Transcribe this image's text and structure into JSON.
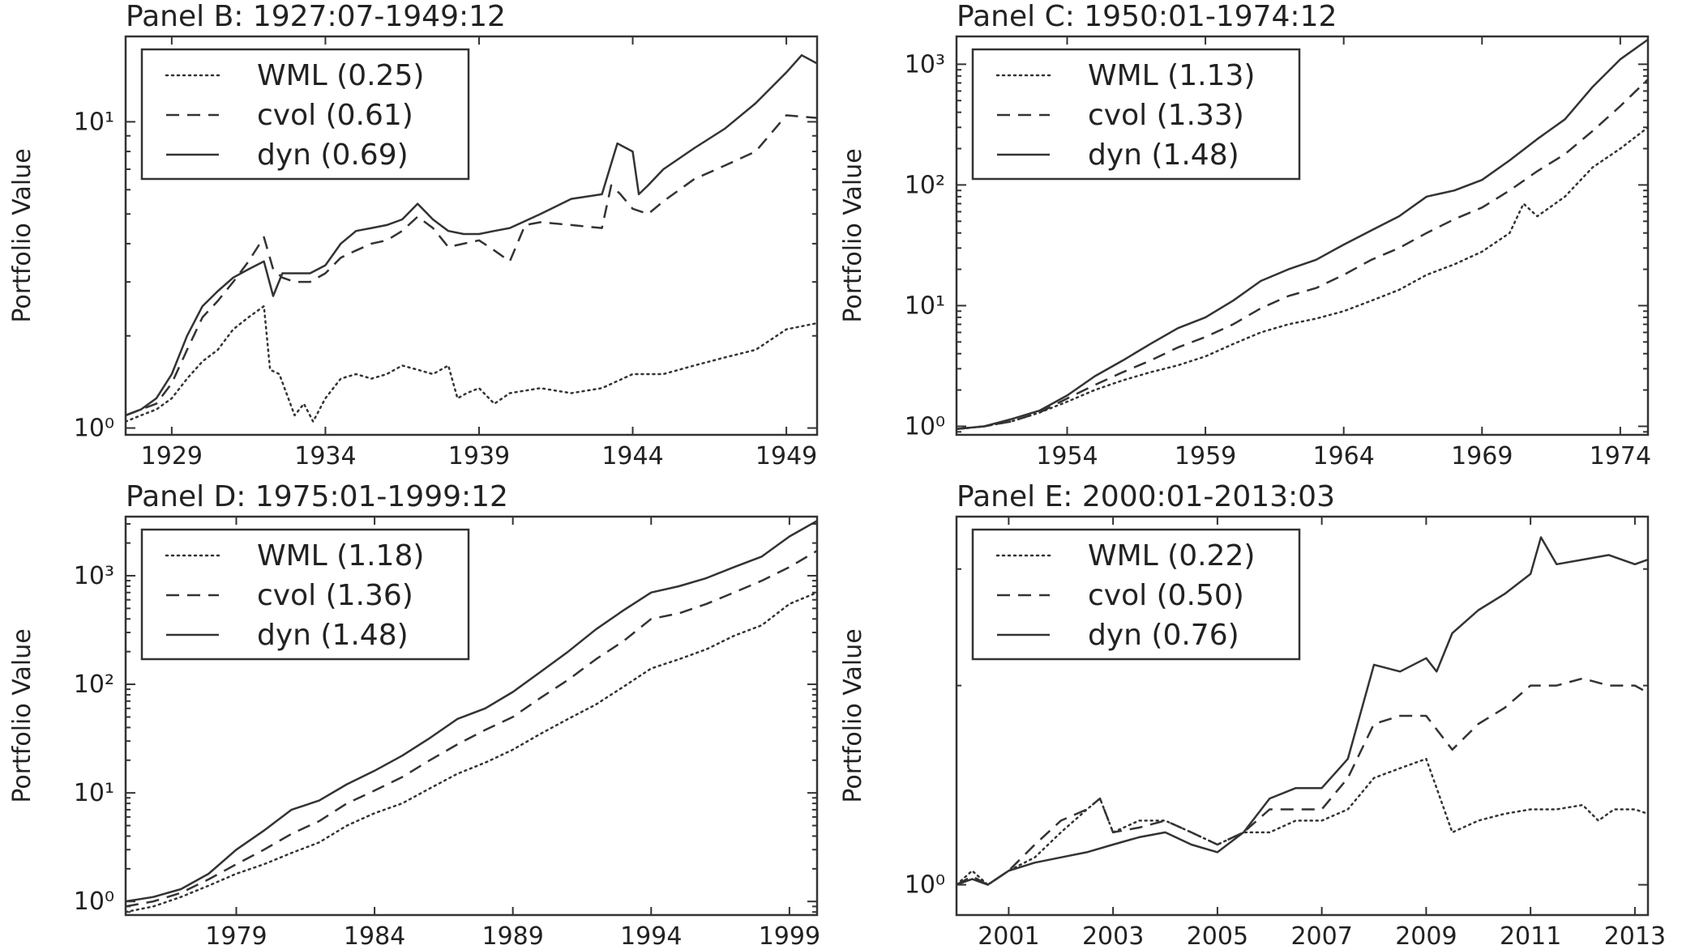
{
  "chart_data": [
    {
      "type": "line",
      "title": "Panel B: 1927:07-1949:12",
      "ylabel": "Portfolio Value",
      "yscale": "log",
      "xlim": [
        1927.5,
        1950.0
      ],
      "ylim": [
        0.95,
        19
      ],
      "xticks": [
        1929,
        1934,
        1939,
        1944,
        1949
      ],
      "yticks": [
        {
          "value": 1,
          "label": "10⁰"
        },
        {
          "value": 10,
          "label": "10¹"
        }
      ],
      "legend_position": "top-left",
      "series": [
        {
          "name": "WML (0.25)",
          "style": "dotted",
          "x": [
            1927.5,
            1928.0,
            1928.5,
            1929.0,
            1929.5,
            1930.0,
            1930.5,
            1931.0,
            1931.5,
            1932.0,
            1932.2,
            1932.5,
            1933.0,
            1933.3,
            1933.6,
            1934.0,
            1934.5,
            1935.0,
            1935.5,
            1936.0,
            1936.5,
            1937.0,
            1937.5,
            1938.0,
            1938.3,
            1938.6,
            1939.0,
            1939.5,
            1940.0,
            1941.0,
            1942.0,
            1943.0,
            1944.0,
            1945.0,
            1946.0,
            1947.0,
            1948.0,
            1949.0,
            1950.0
          ],
          "y": [
            1.05,
            1.1,
            1.15,
            1.25,
            1.45,
            1.65,
            1.8,
            2.1,
            2.3,
            2.5,
            1.55,
            1.5,
            1.1,
            1.2,
            1.05,
            1.25,
            1.45,
            1.5,
            1.45,
            1.5,
            1.6,
            1.55,
            1.5,
            1.6,
            1.25,
            1.3,
            1.35,
            1.2,
            1.3,
            1.35,
            1.3,
            1.35,
            1.5,
            1.5,
            1.6,
            1.7,
            1.8,
            2.1,
            2.2
          ]
        },
        {
          "name": "cvol (0.61)",
          "style": "dashed",
          "x": [
            1927.5,
            1928.0,
            1928.5,
            1929.0,
            1929.5,
            1930.0,
            1930.5,
            1931.0,
            1931.5,
            1932.0,
            1932.3,
            1932.6,
            1933.0,
            1933.5,
            1934.0,
            1934.5,
            1935.0,
            1935.5,
            1936.0,
            1936.5,
            1937.0,
            1937.5,
            1938.0,
            1938.5,
            1939.0,
            1939.5,
            1940.0,
            1940.5,
            1941.0,
            1942.0,
            1943.0,
            1943.3,
            1943.6,
            1944.0,
            1944.5,
            1945.0,
            1946.0,
            1947.0,
            1948.0,
            1949.0,
            1950.0
          ],
          "y": [
            1.1,
            1.15,
            1.2,
            1.4,
            1.8,
            2.3,
            2.6,
            3.0,
            3.5,
            4.2,
            3.3,
            3.1,
            3.0,
            3.0,
            3.2,
            3.6,
            3.8,
            4.0,
            4.1,
            4.4,
            4.9,
            4.5,
            3.9,
            4.0,
            4.1,
            3.8,
            3.5,
            4.6,
            4.7,
            4.6,
            4.5,
            6.2,
            5.8,
            5.2,
            5.0,
            5.5,
            6.5,
            7.2,
            8.0,
            10.5,
            10.3
          ]
        },
        {
          "name": "dyn (0.69)",
          "style": "solid",
          "x": [
            1927.5,
            1928.0,
            1928.5,
            1929.0,
            1929.5,
            1930.0,
            1930.5,
            1931.0,
            1931.5,
            1932.0,
            1932.3,
            1932.6,
            1933.0,
            1933.5,
            1934.0,
            1934.5,
            1935.0,
            1935.5,
            1936.0,
            1936.5,
            1937.0,
            1937.5,
            1938.0,
            1938.5,
            1939.0,
            1939.5,
            1940.0,
            1941.0,
            1942.0,
            1943.0,
            1943.5,
            1944.0,
            1944.2,
            1944.5,
            1945.0,
            1946.0,
            1947.0,
            1948.0,
            1949.0,
            1949.5,
            1950.0
          ],
          "y": [
            1.1,
            1.15,
            1.25,
            1.5,
            2.0,
            2.5,
            2.8,
            3.1,
            3.3,
            3.5,
            2.7,
            3.2,
            3.2,
            3.2,
            3.4,
            4.0,
            4.4,
            4.5,
            4.6,
            4.8,
            5.4,
            4.8,
            4.4,
            4.3,
            4.3,
            4.4,
            4.5,
            5.0,
            5.6,
            5.8,
            8.5,
            8.0,
            5.8,
            6.2,
            7.0,
            8.2,
            9.5,
            11.5,
            14.5,
            16.5,
            15.5
          ]
        }
      ]
    },
    {
      "type": "line",
      "title": "Panel C: 1950:01-1974:12",
      "ylabel": "Portfolio Value",
      "yscale": "log",
      "xlim": [
        1950.0,
        1975.0
      ],
      "ylim": [
        0.85,
        1700
      ],
      "xticks": [
        1954,
        1959,
        1964,
        1969,
        1974
      ],
      "yticks": [
        {
          "value": 1,
          "label": "10⁰"
        },
        {
          "value": 10,
          "label": "10¹"
        },
        {
          "value": 100,
          "label": "10²"
        },
        {
          "value": 1000,
          "label": "10³"
        }
      ],
      "legend_position": "top-left",
      "series": [
        {
          "name": "WML (1.13)",
          "style": "dotted",
          "x": [
            1950,
            1951,
            1952,
            1953,
            1954,
            1955,
            1956,
            1957,
            1958,
            1959,
            1960,
            1961,
            1962,
            1963,
            1964,
            1965,
            1966,
            1967,
            1968,
            1969,
            1970,
            1970.5,
            1971,
            1972,
            1973,
            1974,
            1975
          ],
          "y": [
            0.95,
            1.0,
            1.1,
            1.3,
            1.6,
            2.0,
            2.4,
            2.8,
            3.2,
            3.8,
            4.8,
            6.0,
            7.0,
            7.8,
            9.0,
            11.0,
            13.5,
            18.0,
            22.0,
            28.0,
            40.0,
            70.0,
            55.0,
            80.0,
            140.0,
            200.0,
            300.0
          ]
        },
        {
          "name": "cvol (1.33)",
          "style": "dashed",
          "x": [
            1950,
            1951,
            1952,
            1953,
            1954,
            1955,
            1956,
            1957,
            1958,
            1959,
            1960,
            1961,
            1962,
            1963,
            1964,
            1965,
            1966,
            1967,
            1968,
            1969,
            1970,
            1971,
            1972,
            1973,
            1974,
            1975
          ],
          "y": [
            0.95,
            1.0,
            1.1,
            1.3,
            1.7,
            2.2,
            2.8,
            3.5,
            4.5,
            5.5,
            7.0,
            9.5,
            12.0,
            14.0,
            18.0,
            24.0,
            30.0,
            40.0,
            52.0,
            65.0,
            90.0,
            130.0,
            180.0,
            280.0,
            450.0,
            750.0
          ]
        },
        {
          "name": "dyn (1.48)",
          "style": "solid",
          "x": [
            1950,
            1951,
            1952,
            1953,
            1954,
            1955,
            1956,
            1957,
            1958,
            1959,
            1960,
            1961,
            1962,
            1963,
            1964,
            1965,
            1966,
            1967,
            1968,
            1969,
            1970,
            1971,
            1972,
            1973,
            1974,
            1975
          ],
          "y": [
            0.95,
            1.0,
            1.15,
            1.35,
            1.8,
            2.6,
            3.5,
            4.8,
            6.5,
            8.0,
            11.0,
            16.0,
            20.0,
            24.0,
            32.0,
            42.0,
            55.0,
            80.0,
            90.0,
            110.0,
            160.0,
            240.0,
            350.0,
            650.0,
            1100.0,
            1600.0
          ]
        }
      ]
    },
    {
      "type": "line",
      "title": "Panel D: 1975:01-1999:12",
      "ylabel": "Portfolio Value",
      "yscale": "log",
      "xlim": [
        1975.0,
        2000.0
      ],
      "ylim": [
        0.75,
        3500
      ],
      "xticks": [
        1979,
        1984,
        1989,
        1994,
        1999
      ],
      "yticks": [
        {
          "value": 1,
          "label": "10⁰"
        },
        {
          "value": 10,
          "label": "10¹"
        },
        {
          "value": 100,
          "label": "10²"
        },
        {
          "value": 1000,
          "label": "10³"
        }
      ],
      "legend_position": "top-left",
      "series": [
        {
          "name": "WML (1.18)",
          "style": "dotted",
          "x": [
            1975,
            1976,
            1977,
            1978,
            1979,
            1980,
            1981,
            1982,
            1983,
            1984,
            1985,
            1986,
            1987,
            1988,
            1989,
            1990,
            1991,
            1992,
            1993,
            1994,
            1995,
            1996,
            1997,
            1998,
            1999,
            2000
          ],
          "y": [
            0.8,
            0.9,
            1.1,
            1.4,
            1.8,
            2.2,
            2.8,
            3.5,
            5.0,
            6.5,
            8.0,
            11.0,
            15.0,
            19.0,
            25.0,
            35.0,
            48.0,
            65.0,
            95.0,
            140.0,
            170.0,
            210.0,
            280.0,
            350.0,
            550.0,
            700.0
          ]
        },
        {
          "name": "cvol (1.36)",
          "style": "dashed",
          "x": [
            1975,
            1976,
            1977,
            1978,
            1979,
            1980,
            1981,
            1982,
            1983,
            1984,
            1985,
            1986,
            1987,
            1988,
            1989,
            1990,
            1991,
            1992,
            1993,
            1994,
            1995,
            1996,
            1997,
            1998,
            1999,
            2000
          ],
          "y": [
            0.9,
            1.0,
            1.2,
            1.6,
            2.2,
            3.0,
            4.2,
            5.5,
            8.0,
            10.5,
            14.0,
            20.0,
            28.0,
            38.0,
            50.0,
            75.0,
            110.0,
            170.0,
            250.0,
            400.0,
            450.0,
            550.0,
            700.0,
            900.0,
            1200.0,
            1700.0
          ]
        },
        {
          "name": "dyn (1.48)",
          "style": "solid",
          "x": [
            1975,
            1976,
            1977,
            1978,
            1979,
            1980,
            1981,
            1982,
            1983,
            1984,
            1985,
            1986,
            1987,
            1988,
            1989,
            1990,
            1991,
            1992,
            1993,
            1994,
            1995,
            1996,
            1997,
            1998,
            1999,
            2000
          ],
          "y": [
            1.0,
            1.1,
            1.3,
            1.8,
            3.0,
            4.5,
            7.0,
            8.5,
            12.0,
            16.0,
            22.0,
            32.0,
            48.0,
            60.0,
            85.0,
            130.0,
            200.0,
            320.0,
            480.0,
            700.0,
            800.0,
            950.0,
            1200.0,
            1500.0,
            2300.0,
            3200.0
          ]
        }
      ]
    },
    {
      "type": "line",
      "title": "Panel E: 2000:01-2013:03",
      "ylabel": "Portfolio Value",
      "yscale": "log",
      "xlim": [
        2000.0,
        2013.25
      ],
      "ylim": [
        0.9,
        3.6
      ],
      "xticks": [
        2001,
        2003,
        2005,
        2007,
        2009,
        2011,
        2013
      ],
      "yticks": [
        {
          "value": 1,
          "label": "10⁰"
        }
      ],
      "legend_position": "top-left",
      "series": [
        {
          "name": "WML (0.22)",
          "style": "dotted",
          "x": [
            2000,
            2000.3,
            2000.6,
            2001,
            2001.5,
            2002,
            2002.5,
            2002.75,
            2003,
            2003.5,
            2004,
            2004.5,
            2005,
            2005.5,
            2006,
            2006.5,
            2007,
            2007.5,
            2008,
            2008.5,
            2009,
            2009.2,
            2009.5,
            2010,
            2010.5,
            2011,
            2011.5,
            2012,
            2012.3,
            2012.6,
            2013,
            2013.25
          ],
          "y": [
            1.0,
            1.05,
            1.0,
            1.05,
            1.1,
            1.2,
            1.3,
            1.35,
            1.2,
            1.25,
            1.25,
            1.2,
            1.15,
            1.2,
            1.2,
            1.25,
            1.25,
            1.3,
            1.45,
            1.5,
            1.55,
            1.4,
            1.2,
            1.25,
            1.28,
            1.3,
            1.3,
            1.32,
            1.25,
            1.3,
            1.3,
            1.28
          ]
        },
        {
          "name": "cvol (0.50)",
          "style": "dashed",
          "x": [
            2000,
            2000.3,
            2000.6,
            2001,
            2001.5,
            2002,
            2002.5,
            2002.75,
            2003,
            2003.5,
            2004,
            2004.5,
            2005,
            2005.5,
            2006,
            2006.5,
            2007,
            2007.5,
            2008,
            2008.5,
            2009,
            2009.5,
            2010,
            2010.5,
            2011,
            2011.5,
            2012,
            2012.5,
            2013,
            2013.25
          ],
          "y": [
            1.0,
            1.03,
            1.0,
            1.05,
            1.15,
            1.25,
            1.3,
            1.35,
            1.2,
            1.22,
            1.25,
            1.2,
            1.15,
            1.2,
            1.3,
            1.3,
            1.3,
            1.45,
            1.75,
            1.8,
            1.8,
            1.6,
            1.75,
            1.85,
            2.0,
            2.0,
            2.05,
            2.0,
            2.0,
            1.95
          ]
        },
        {
          "name": "dyn (0.76)",
          "style": "solid",
          "x": [
            2000,
            2000.3,
            2000.6,
            2001,
            2001.5,
            2002,
            2002.5,
            2003,
            2003.5,
            2004,
            2004.5,
            2005,
            2005.5,
            2006,
            2006.5,
            2007,
            2007.5,
            2008,
            2008.5,
            2009,
            2009.2,
            2009.5,
            2010,
            2010.5,
            2011,
            2011.2,
            2011.5,
            2012,
            2012.5,
            2013,
            2013.25
          ],
          "y": [
            1.0,
            1.02,
            1.0,
            1.05,
            1.08,
            1.1,
            1.12,
            1.15,
            1.18,
            1.2,
            1.15,
            1.12,
            1.2,
            1.35,
            1.4,
            1.4,
            1.55,
            2.15,
            2.1,
            2.2,
            2.1,
            2.4,
            2.6,
            2.75,
            2.95,
            3.35,
            3.05,
            3.1,
            3.15,
            3.05,
            3.1
          ]
        }
      ]
    }
  ]
}
